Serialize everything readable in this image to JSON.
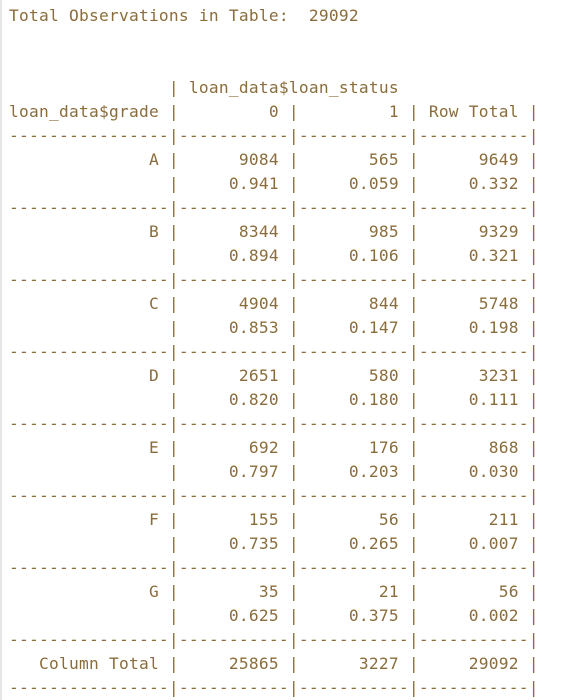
{
  "console": {
    "text_color": "#8a6d3b",
    "lines": [
      "Total Observations in Table:  29092",
      "",
      "",
      "                | loan_data$loan_status",
      "loan_data$grade |         0 |         1 | Row Total |",
      "----------------|-----------|-----------|-----------|",
      "              A |      9084 |       565 |      9649 |",
      "                |     0.941 |     0.059 |     0.332 |",
      "----------------|-----------|-----------|-----------|",
      "              B |      8344 |       985 |      9329 |",
      "                |     0.894 |     0.106 |     0.321 |",
      "----------------|-----------|-----------|-----------|",
      "              C |      4904 |       844 |      5748 |",
      "                |     0.853 |     0.147 |     0.198 |",
      "----------------|-----------|-----------|-----------|",
      "              D |      2651 |       580 |      3231 |",
      "                |     0.820 |     0.180 |     0.111 |",
      "----------------|-----------|-----------|-----------|",
      "              E |       692 |       176 |       868 |",
      "                |     0.797 |     0.203 |     0.030 |",
      "----------------|-----------|-----------|-----------|",
      "              F |       155 |        56 |       211 |",
      "                |     0.735 |     0.265 |     0.007 |",
      "----------------|-----------|-----------|-----------|",
      "              G |        35 |        21 |        56 |",
      "                |     0.625 |     0.375 |     0.002 |",
      "----------------|-----------|-----------|-----------|",
      "   Column Total |     25865 |      3227 |     29092 |",
      "----------------|-----------|-----------|-----------|"
    ]
  }
}
